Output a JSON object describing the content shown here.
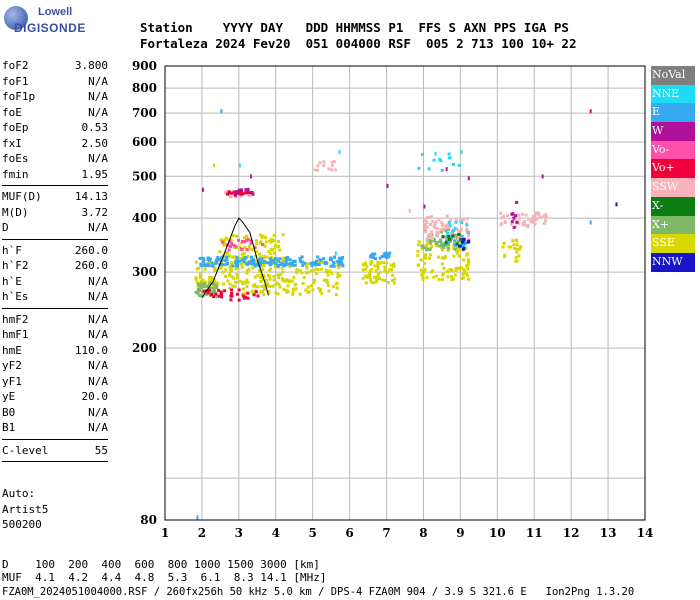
{
  "logo": {
    "top": "Lowell",
    "main": "DIGISONDE"
  },
  "header": {
    "line1": "Station    YYYY DAY   DDD HHMMSS P1  FFS S AXN PPS IGA PS",
    "line2": "Fortaleza 2024 Fev20  051 004000 RSF  005 2 713 100 10+ 22"
  },
  "params": {
    "group1": [
      {
        "name": "foF2",
        "value": "3.800"
      },
      {
        "name": "foF1",
        "value": "N/A"
      },
      {
        "name": "foF1p",
        "value": "N/A"
      },
      {
        "name": "foE",
        "value": "N/A"
      },
      {
        "name": "foEp",
        "value": "0.53"
      },
      {
        "name": "fxI",
        "value": "2.50"
      },
      {
        "name": "foEs",
        "value": "N/A"
      },
      {
        "name": "fmin",
        "value": "1.95"
      }
    ],
    "group2": [
      {
        "name": "MUF(D)",
        "value": "14.13"
      },
      {
        "name": "M(D)",
        "value": "3.72"
      },
      {
        "name": "D",
        "value": "N/A"
      }
    ],
    "group3": [
      {
        "name": "h`F",
        "value": "260.0"
      },
      {
        "name": "h`F2",
        "value": "260.0"
      },
      {
        "name": "h`E",
        "value": "N/A"
      },
      {
        "name": "h`Es",
        "value": "N/A"
      }
    ],
    "group4": [
      {
        "name": "hmF2",
        "value": "N/A"
      },
      {
        "name": "hmF1",
        "value": "N/A"
      },
      {
        "name": "hmE",
        "value": "110.0"
      },
      {
        "name": "yF2",
        "value": "N/A"
      },
      {
        "name": "yF1",
        "value": "N/A"
      },
      {
        "name": "yE",
        "value": "20.0"
      },
      {
        "name": "B0",
        "value": "N/A"
      },
      {
        "name": "B1",
        "value": "N/A"
      }
    ],
    "group5": [
      {
        "name": "C-level",
        "value": "55"
      }
    ]
  },
  "auto": [
    "Auto:",
    "Artist5",
    "500200"
  ],
  "legend": [
    {
      "label": "NoVal",
      "color": "#7f7f7f"
    },
    {
      "label": "NNE",
      "color": "#1fdcf5"
    },
    {
      "label": "E",
      "color": "#37a9f0"
    },
    {
      "label": "W",
      "color": "#b0109a"
    },
    {
      "label": "Vo-",
      "color": "#ff4fa8"
    },
    {
      "label": "Vo+",
      "color": "#f2003c"
    },
    {
      "label": "SSW",
      "color": "#f7b3b9"
    },
    {
      "label": "X-",
      "color": "#0b7d12"
    },
    {
      "label": "X+",
      "color": "#7fb867"
    },
    {
      "label": "SSE",
      "color": "#d8d800"
    },
    {
      "label": "NNW",
      "color": "#1616c8"
    }
  ],
  "bottom": {
    "line1": "D    100  200  400  600  800 1000 1500 3000 [km]",
    "line2": "MUF  4.1  4.2  4.4  4.8  5.3  6.1  8.3 14.1 [MHz]"
  },
  "footer": "FZA0M_2024051004000.RSF / 260fx256h 50 kHz 5.0 km / DPS-4 FZA0M 904 / 3.9 S 321.6 E   Ion2Png 1.3.20",
  "chart_data": {
    "type": "scatter",
    "title": "",
    "xlabel": "",
    "ylabel": "",
    "xlim": [
      1,
      14
    ],
    "ylim": [
      80,
      900
    ],
    "x_ticks": [
      "1",
      "2",
      "3",
      "4",
      "5",
      "6",
      "7",
      "8",
      "9",
      "10",
      "11",
      "12",
      "13",
      "14"
    ],
    "y_ticks": [
      "80",
      "200",
      "300",
      "400",
      "500",
      "600",
      "700",
      "800",
      "900"
    ],
    "y_scale": "log",
    "grid": true,
    "legend_position": "right",
    "trace": {
      "x": [
        2.0,
        2.3,
        2.6,
        2.9,
        3.0,
        3.1,
        3.3,
        3.5,
        3.7,
        3.8
      ],
      "y": [
        262,
        285,
        330,
        385,
        400,
        392,
        370,
        320,
        285,
        265
      ]
    },
    "clusters": [
      {
        "name": "SSE",
        "color": "#d8d800",
        "x": [
          1.8,
          5.8
        ],
        "y": [
          268,
          320
        ],
        "n": 260
      },
      {
        "name": "SSE",
        "color": "#d8d800",
        "x": [
          2.4,
          4.2
        ],
        "y": [
          320,
          370
        ],
        "n": 90
      },
      {
        "name": "SSE",
        "color": "#d8d800",
        "x": [
          6.3,
          7.2
        ],
        "y": [
          285,
          320
        ],
        "n": 60
      },
      {
        "name": "SSE",
        "color": "#d8d800",
        "x": [
          7.8,
          9.2
        ],
        "y": [
          290,
          360
        ],
        "n": 110
      },
      {
        "name": "SSE",
        "color": "#d8d800",
        "x": [
          10.1,
          10.6
        ],
        "y": [
          320,
          360
        ],
        "n": 20
      },
      {
        "name": "E",
        "color": "#37a9f0",
        "x": [
          1.9,
          5.8
        ],
        "y": [
          312,
          328
        ],
        "n": 170
      },
      {
        "name": "E",
        "color": "#37a9f0",
        "x": [
          6.5,
          7.1
        ],
        "y": [
          325,
          335
        ],
        "n": 20
      },
      {
        "name": "E",
        "color": "#37a9f0",
        "x": [
          8.4,
          9.1
        ],
        "y": [
          348,
          368
        ],
        "n": 30
      },
      {
        "name": "X+",
        "color": "#7fb867",
        "x": [
          1.8,
          2.4
        ],
        "y": [
          265,
          285
        ],
        "n": 40
      },
      {
        "name": "X+",
        "color": "#7fb867",
        "x": [
          7.9,
          9.0
        ],
        "y": [
          340,
          380
        ],
        "n": 40
      },
      {
        "name": "SSW",
        "color": "#f7b3b9",
        "x": [
          8.0,
          9.2
        ],
        "y": [
          360,
          410
        ],
        "n": 60
      },
      {
        "name": "SSW",
        "color": "#f7b3b9",
        "x": [
          10.0,
          11.3
        ],
        "y": [
          385,
          415
        ],
        "n": 50
      },
      {
        "name": "SSW",
        "color": "#f7b3b9",
        "x": [
          5.0,
          5.6
        ],
        "y": [
          520,
          545
        ],
        "n": 12
      },
      {
        "name": "SSW",
        "color": "#f7b3b9",
        "x": [
          2.6,
          3.3
        ],
        "y": [
          450,
          465
        ],
        "n": 12
      },
      {
        "name": "Vo-",
        "color": "#ff4fa8",
        "x": [
          2.5,
          3.6
        ],
        "y": [
          340,
          360
        ],
        "n": 25
      },
      {
        "name": "Vo+",
        "color": "#f2003c",
        "x": [
          2.0,
          3.5
        ],
        "y": [
          260,
          275
        ],
        "n": 30
      },
      {
        "name": "Vo+",
        "color": "#f2003c",
        "x": [
          2.6,
          3.4
        ],
        "y": [
          455,
          465
        ],
        "n": 15
      },
      {
        "name": "W",
        "color": "#b0109a",
        "x": [
          2.8,
          3.5
        ],
        "y": [
          455,
          470
        ],
        "n": 10
      },
      {
        "name": "W",
        "color": "#b0109a",
        "x": [
          10.2,
          10.5
        ],
        "y": [
          380,
          440
        ],
        "n": 8
      },
      {
        "name": "NNE",
        "color": "#1fdcf5",
        "x": [
          7.8,
          9.0
        ],
        "y": [
          520,
          570
        ],
        "n": 12
      },
      {
        "name": "NNE",
        "color": "#1fdcf5",
        "x": [
          8.6,
          9.2
        ],
        "y": [
          370,
          395
        ],
        "n": 10
      },
      {
        "name": "NNW",
        "color": "#1616c8",
        "x": [
          8.9,
          9.2
        ],
        "y": [
          340,
          365
        ],
        "n": 10
      },
      {
        "name": "X-",
        "color": "#0b7d12",
        "x": [
          8.4,
          9.0
        ],
        "y": [
          350,
          370
        ],
        "n": 8
      }
    ],
    "isolated_points": [
      {
        "x": 1.85,
        "y": 82,
        "color": "#37a9f0"
      },
      {
        "x": 2.5,
        "y": 715,
        "color": "#37a9f0"
      },
      {
        "x": 12.5,
        "y": 715,
        "color": "#f2003c"
      },
      {
        "x": 2.0,
        "y": 470,
        "color": "#b0109a"
      },
      {
        "x": 2.3,
        "y": 535,
        "color": "#d8d800"
      },
      {
        "x": 3.0,
        "y": 535,
        "color": "#1fdcf5"
      },
      {
        "x": 3.3,
        "y": 505,
        "color": "#b0109a"
      },
      {
        "x": 5.7,
        "y": 575,
        "color": "#1fdcf5"
      },
      {
        "x": 7.0,
        "y": 480,
        "color": "#b0109a"
      },
      {
        "x": 8.0,
        "y": 430,
        "color": "#b0109a"
      },
      {
        "x": 8.3,
        "y": 570,
        "color": "#1fdcf5"
      },
      {
        "x": 8.6,
        "y": 525,
        "color": "#b0109a"
      },
      {
        "x": 9.0,
        "y": 575,
        "color": "#1fdcf5"
      },
      {
        "x": 9.2,
        "y": 500,
        "color": "#b0109a"
      },
      {
        "x": 11.2,
        "y": 505,
        "color": "#b0109a"
      },
      {
        "x": 12.5,
        "y": 395,
        "color": "#37a9f0"
      },
      {
        "x": 13.2,
        "y": 435,
        "color": "#1616c8"
      },
      {
        "x": 11.0,
        "y": 410,
        "color": "#f7b3b9"
      },
      {
        "x": 5.6,
        "y": 335,
        "color": "#1fdcf5"
      },
      {
        "x": 7.6,
        "y": 420,
        "color": "#f7b3b9"
      }
    ]
  }
}
